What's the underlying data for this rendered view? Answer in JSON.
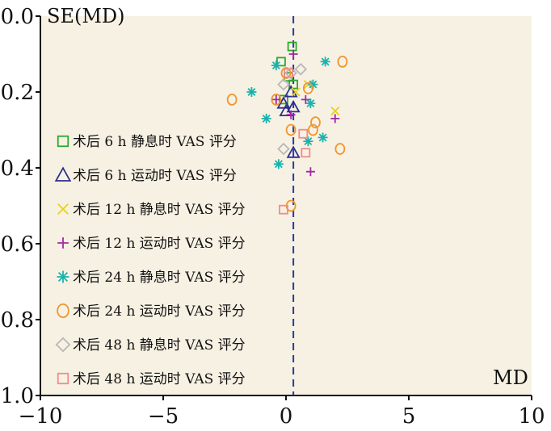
{
  "chart_data": {
    "type": "scatter",
    "title": "",
    "xlabel": "MD",
    "ylabel": "SE(MD)",
    "xlim": [
      -10,
      10
    ],
    "ylim": [
      0.0,
      1.0
    ],
    "y_inverted": true,
    "x_ticks": [
      "−10",
      "−5",
      "0",
      "5",
      "10"
    ],
    "y_ticks": [
      "0.0",
      "0.2",
      "0.4",
      "0.6",
      "0.8",
      "1.0"
    ],
    "reference_line_x": 0.3,
    "legend_position": "left",
    "colors": {
      "background": "#f7f1e3",
      "reference_line": "#2b3a9e"
    },
    "series": [
      {
        "name": "术后 6 h 静息时 VAS 评分",
        "marker": "square",
        "color": "#2ea82e",
        "points": [
          [
            0.25,
            0.08
          ],
          [
            -0.2,
            0.12
          ],
          [
            0.1,
            0.16
          ],
          [
            0.3,
            0.18
          ],
          [
            -0.1,
            0.22
          ]
        ]
      },
      {
        "name": "术后 6 h 运动时 VAS 评分",
        "marker": "triangle",
        "color": "#2b2f8f",
        "points": [
          [
            0.2,
            0.2
          ],
          [
            -0.1,
            0.23
          ],
          [
            0.3,
            0.24
          ],
          [
            0.0,
            0.25
          ],
          [
            0.3,
            0.36
          ]
        ]
      },
      {
        "name": "术后 12 h 静息时 VAS 评分",
        "marker": "x",
        "color": "#e8d21a",
        "points": [
          [
            0.9,
            0.18
          ],
          [
            2.0,
            0.25
          ],
          [
            0.4,
            0.2
          ]
        ]
      },
      {
        "name": "术后 12 h 运动时 VAS 评分",
        "marker": "plus",
        "color": "#a626a6",
        "points": [
          [
            0.3,
            0.1
          ],
          [
            -0.4,
            0.22
          ],
          [
            0.8,
            0.22
          ],
          [
            2.0,
            0.27
          ],
          [
            0.2,
            0.26
          ],
          [
            1.0,
            0.41
          ]
        ]
      },
      {
        "name": "术后 24 h 静息时 VAS 评分",
        "marker": "asterisk",
        "color": "#19b3ad",
        "points": [
          [
            -0.4,
            0.13
          ],
          [
            1.6,
            0.12
          ],
          [
            1.1,
            0.18
          ],
          [
            -1.4,
            0.2
          ],
          [
            1.0,
            0.23
          ],
          [
            -0.8,
            0.27
          ],
          [
            1.5,
            0.32
          ],
          [
            0.9,
            0.33
          ],
          [
            -0.3,
            0.39
          ]
        ]
      },
      {
        "name": "术后 24 h 运动时 VAS 评分",
        "marker": "circle",
        "color": "#f0962e",
        "points": [
          [
            2.3,
            0.12
          ],
          [
            0.0,
            0.15
          ],
          [
            0.9,
            0.19
          ],
          [
            -2.2,
            0.22
          ],
          [
            -0.4,
            0.22
          ],
          [
            1.2,
            0.28
          ],
          [
            0.2,
            0.3
          ],
          [
            1.1,
            0.3
          ],
          [
            2.2,
            0.35
          ],
          [
            0.2,
            0.5
          ]
        ]
      },
      {
        "name": "术后 48 h 静息时 VAS 评分",
        "marker": "diamond",
        "color": "#b8b8b8",
        "points": [
          [
            0.6,
            0.14
          ],
          [
            0.2,
            0.15
          ],
          [
            -0.1,
            0.18
          ],
          [
            -0.1,
            0.35
          ]
        ]
      },
      {
        "name": "术后 48 h 运动时 VAS 评分",
        "marker": "square",
        "color": "#f08c8c",
        "points": [
          [
            0.1,
            0.15
          ],
          [
            0.7,
            0.31
          ],
          [
            0.8,
            0.36
          ],
          [
            -0.1,
            0.51
          ]
        ]
      }
    ]
  }
}
